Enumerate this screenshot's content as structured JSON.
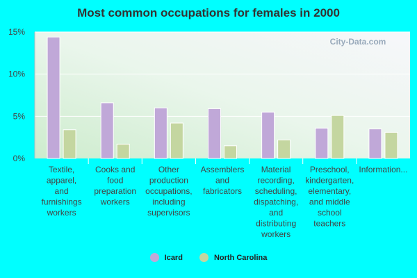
{
  "chart_data": {
    "type": "bar",
    "title": "Most common occupations for females in 2000",
    "xlabel": "",
    "ylabel": "",
    "ylim": [
      0,
      15
    ],
    "yticks": [
      "0%",
      "5%",
      "10%",
      "15%"
    ],
    "ytick_values": [
      0,
      5,
      10,
      15
    ],
    "categories": [
      [
        "Textile,",
        "apparel,",
        "and",
        "furnishings",
        "workers"
      ],
      [
        "Cooks and",
        "food",
        "preparation",
        "workers"
      ],
      [
        "Other",
        "production",
        "occupations,",
        "including",
        "supervisors"
      ],
      [
        "Assemblers",
        "and",
        "fabricators"
      ],
      [
        "Material",
        "recording,",
        "scheduling,",
        "dispatching,",
        "and",
        "distributing",
        "workers"
      ],
      [
        "Preschool,",
        "kindergarten,",
        "elementary,",
        "and middle",
        "school",
        "teachers"
      ],
      [
        "Information..."
      ]
    ],
    "series": [
      {
        "name": "Icard",
        "color": "#c0a8d8",
        "values": [
          14.4,
          6.6,
          6.0,
          5.9,
          5.5,
          3.6,
          3.5
        ]
      },
      {
        "name": "North Carolina",
        "color": "#c4d6a0",
        "values": [
          3.4,
          1.7,
          4.2,
          1.5,
          2.2,
          5.1,
          3.1
        ]
      }
    ],
    "grid": true,
    "legend_position": "bottom"
  },
  "watermark": "City-Data.com"
}
